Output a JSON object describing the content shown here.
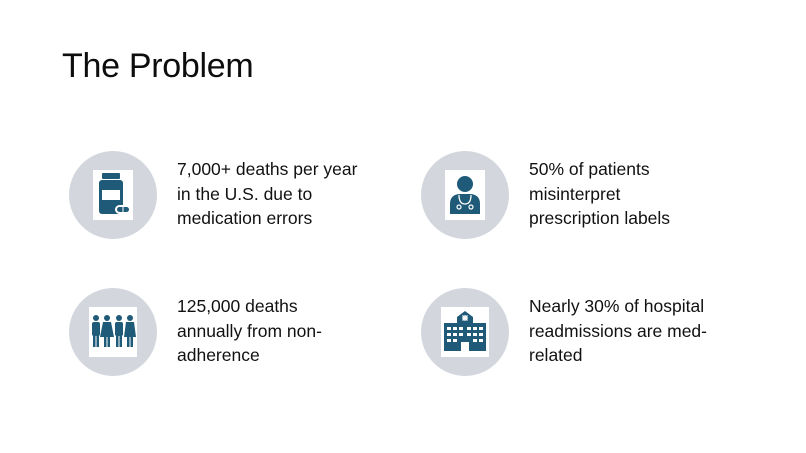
{
  "slide": {
    "title": "The Problem",
    "accent_color": "#1f5a78",
    "circle_color": "#d3d7dd"
  },
  "cards": [
    {
      "icon": "medicine-bottle-icon",
      "lines": [
        "7,000+ deaths per year",
        "in the U.S. due to",
        "medication errors"
      ]
    },
    {
      "icon": "doctor-icon",
      "lines": [
        "50% of patients",
        "misinterpret",
        "prescription labels"
      ]
    },
    {
      "icon": "people-group-icon",
      "lines": [
        "125,000 deaths",
        "annually from non-",
        "adherence"
      ]
    },
    {
      "icon": "hospital-icon",
      "lines": [
        "Nearly 30% of hospital",
        "readmissions are med-",
        "related"
      ]
    }
  ]
}
